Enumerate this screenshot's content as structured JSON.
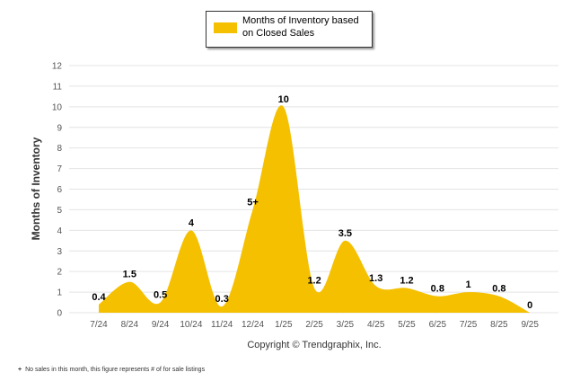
{
  "chart_data": {
    "type": "area",
    "categories": [
      "7/24",
      "8/24",
      "9/24",
      "10/24",
      "11/24",
      "12/24",
      "1/25",
      "2/25",
      "3/25",
      "4/25",
      "5/25",
      "6/25",
      "7/25",
      "8/25",
      "9/25"
    ],
    "series": [
      {
        "name": "Months of Inventory based on Closed Sales",
        "values": [
          0.4,
          1.5,
          0.5,
          4,
          0.3,
          5,
          10,
          1.2,
          3.5,
          1.3,
          1.2,
          0.8,
          1,
          0.8,
          0
        ],
        "data_labels": [
          "0.4",
          "1.5",
          "0.5",
          "4",
          "0.3",
          "5+",
          "10",
          "1.2",
          "3.5",
          "1.3",
          "1.2",
          "0.8",
          "1",
          "0.8",
          "0"
        ],
        "color": "#F5C000"
      }
    ],
    "title": "",
    "xlabel": "",
    "ylabel": "Months of Inventory",
    "ylim": [
      0,
      12
    ],
    "yticks": [
      "0",
      "1",
      "2",
      "3",
      "4",
      "5",
      "6",
      "7",
      "8",
      "9",
      "10",
      "11",
      "12"
    ],
    "grid": true,
    "legend": "top-center",
    "copyright": "Copyright © Trendgraphix, Inc."
  },
  "legend": {
    "label": "Months of Inventory based on Closed Sales",
    "color": "#F5C000"
  },
  "footnote": {
    "mark": "+",
    "text": "No sales in this month, this figure represents # of for sale listings"
  }
}
